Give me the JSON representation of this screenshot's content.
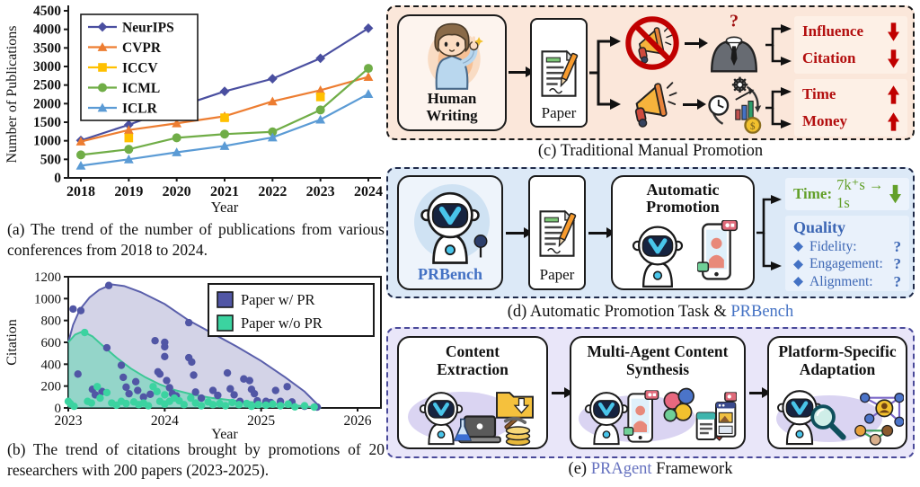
{
  "figure": {
    "panel_a": {
      "caption": "(a) The trend of the number of publications from various conferences from 2018 to 2024."
    },
    "panel_b": {
      "caption": "(b) The trend of citations brought by promotions of 20 researchers with 200 papers (2023-2025)."
    },
    "panel_c": {
      "caption": "(c) Traditional Manual Promotion",
      "human_line1": "Human",
      "human_line2": "Writing",
      "paper_label": "Paper",
      "outcomes_group1": [
        {
          "label": "Influence",
          "direction": "down"
        },
        {
          "label": "Citation",
          "direction": "down"
        }
      ],
      "outcomes_group2": [
        {
          "label": "Time",
          "direction": "up"
        },
        {
          "label": "Money",
          "direction": "up"
        }
      ]
    },
    "panel_d": {
      "caption_text": "(d) Automatic Promotion Task & ",
      "caption_link": "PRBench",
      "prbench_label": "PRBench",
      "paper_label": "Paper",
      "promo_line1": "Automatic",
      "promo_line2": "Promotion",
      "time_label": "Time:",
      "time_value": "7k⁺s → 1s",
      "quality_title": "Quality",
      "quality_items": [
        {
          "label": "Fidelity:",
          "value": "?"
        },
        {
          "label": "Engagement:",
          "value": "?"
        },
        {
          "label": "Alignment:",
          "value": "?"
        }
      ]
    },
    "panel_e": {
      "caption_prefix": "(e) ",
      "caption_link": "PRAgent",
      "caption_suffix": " Framework",
      "stages": [
        {
          "line1": "Content",
          "line2": "Extraction"
        },
        {
          "line1": "Multi-Agent Content",
          "line2": "Synthesis"
        },
        {
          "line1": "Platform-Specific",
          "line2": "Adaptation"
        }
      ]
    },
    "colors": {
      "red_text": "#b30f0f",
      "red_arrow": "#c00000",
      "green_text": "#63a02a",
      "blue_text": "#3c66b4",
      "link_blue": "#4472c4",
      "link_purple": "#6672c0",
      "panel_c_bg": "#fbe7da",
      "panel_d_bg": "#dce9f7",
      "panel_e_bg": "#e9e6f9"
    }
  },
  "chart_data": [
    {
      "type": "line",
      "title": "",
      "xlabel": "Year",
      "ylabel": "Number of Publications",
      "ylim": [
        0,
        4500
      ],
      "ytick_step": 500,
      "categories": [
        2018,
        2019,
        2020,
        2021,
        2022,
        2023,
        2024
      ],
      "legend_position": "upper-left",
      "grid": false,
      "series": [
        {
          "name": "NeurIPS",
          "color": "#4a4fa0",
          "marker": "diamond",
          "values": [
            1010,
            1430,
            1900,
            2330,
            2670,
            3220,
            4030
          ]
        },
        {
          "name": "CVPR",
          "color": "#ED7D31",
          "marker": "triangle",
          "values": [
            980,
            1290,
            1470,
            1660,
            2060,
            2360,
            2720
          ]
        },
        {
          "name": "ICCV",
          "color": "#FFC000",
          "marker": "square",
          "values": [
            null,
            1075,
            null,
            1620,
            null,
            2180,
            null
          ]
        },
        {
          "name": "ICML",
          "color": "#70AD47",
          "marker": "circle",
          "values": [
            620,
            770,
            1080,
            1180,
            1240,
            1830,
            2950
          ]
        },
        {
          "name": "ICLR",
          "color": "#5B9BD5",
          "marker": "triangle",
          "values": [
            330,
            500,
            690,
            860,
            1090,
            1570,
            2260
          ]
        }
      ]
    },
    {
      "type": "scatter_area",
      "title": "",
      "xlabel": "Year",
      "ylabel": "Citation",
      "xlim": [
        2023,
        2026.25
      ],
      "xticks": [
        2023,
        2024,
        2025,
        2026
      ],
      "ylim": [
        0,
        1200
      ],
      "ytick_step": 200,
      "legend_position": "upper-right",
      "grid": false,
      "series": [
        {
          "name": "Paper w/ PR",
          "color": "#5a5fab",
          "point_color": "#5156a5",
          "fill": "rgba(98,98,170,0.28)",
          "envelope": [
            [
              2023,
              600
            ],
            [
              2023.05,
              760
            ],
            [
              2023.12,
              900
            ],
            [
              2023.22,
              1010
            ],
            [
              2023.32,
              1080
            ],
            [
              2023.45,
              1130
            ],
            [
              2023.58,
              1115
            ],
            [
              2023.75,
              1060
            ],
            [
              2024.0,
              950
            ],
            [
              2024.25,
              800
            ],
            [
              2024.5,
              680
            ],
            [
              2024.75,
              560
            ],
            [
              2025.0,
              430
            ],
            [
              2025.25,
              280
            ],
            [
              2025.45,
              150
            ],
            [
              2025.62,
              0
            ]
          ],
          "points": [
            [
              2023.05,
              905
            ],
            [
              2023.13,
              890
            ],
            [
              2023.1,
              310
            ],
            [
              2023.25,
              170
            ],
            [
              2023.28,
              120
            ],
            [
              2023.35,
              150
            ],
            [
              2023.42,
              1120
            ],
            [
              2023.4,
              550
            ],
            [
              2023.55,
              390
            ],
            [
              2023.57,
              280
            ],
            [
              2023.6,
              190
            ],
            [
              2023.63,
              130
            ],
            [
              2023.7,
              240
            ],
            [
              2023.72,
              160
            ],
            [
              2023.78,
              100
            ],
            [
              2023.85,
              125
            ],
            [
              2023.9,
              615
            ],
            [
              2023.93,
              330
            ],
            [
              2023.95,
              310
            ],
            [
              2024.0,
              600
            ],
            [
              2024.0,
              560
            ],
            [
              2024.0,
              470
            ],
            [
              2024.02,
              250
            ],
            [
              2024.05,
              185
            ],
            [
              2024.08,
              130
            ],
            [
              2024.12,
              110
            ],
            [
              2024.25,
              780
            ],
            [
              2024.25,
              460
            ],
            [
              2024.28,
              420
            ],
            [
              2024.3,
              300
            ],
            [
              2024.32,
              145
            ],
            [
              2024.38,
              90
            ],
            [
              2024.5,
              160
            ],
            [
              2024.55,
              115
            ],
            [
              2024.65,
              320
            ],
            [
              2024.68,
              175
            ],
            [
              2024.72,
              120
            ],
            [
              2024.78,
              60
            ],
            [
              2024.82,
              265
            ],
            [
              2024.88,
              250
            ],
            [
              2024.9,
              170
            ],
            [
              2024.93,
              130
            ],
            [
              2024.96,
              65
            ],
            [
              2025.05,
              60
            ],
            [
              2025.1,
              50
            ],
            [
              2025.15,
              160
            ],
            [
              2025.2,
              60
            ],
            [
              2025.27,
              195
            ],
            [
              2025.32,
              55
            ],
            [
              2025.45,
              15
            ],
            [
              2025.58,
              8
            ]
          ]
        },
        {
          "name": "Paper w/o PR",
          "color": "#3cc896",
          "point_color": "#3bd3a0",
          "fill": "rgba(72,216,165,0.45)",
          "envelope": [
            [
              2023,
              600
            ],
            [
              2023.07,
              670
            ],
            [
              2023.15,
              700
            ],
            [
              2023.25,
              655
            ],
            [
              2023.35,
              575
            ],
            [
              2023.5,
              460
            ],
            [
              2023.65,
              360
            ],
            [
              2023.8,
              280
            ],
            [
              2023.95,
              215
            ],
            [
              2024.1,
              165
            ],
            [
              2024.3,
              120
            ],
            [
              2024.5,
              90
            ],
            [
              2024.75,
              65
            ],
            [
              2025.0,
              45
            ],
            [
              2025.25,
              30
            ],
            [
              2025.45,
              15
            ],
            [
              2025.62,
              0
            ]
          ],
          "points": [
            [
              2023.0,
              60
            ],
            [
              2023.02,
              40
            ],
            [
              2023.06,
              15
            ],
            [
              2023.17,
              690
            ],
            [
              2023.2,
              60
            ],
            [
              2023.24,
              45
            ],
            [
              2023.3,
              195
            ],
            [
              2023.33,
              90
            ],
            [
              2023.4,
              140
            ],
            [
              2023.45,
              45
            ],
            [
              2023.5,
              25
            ],
            [
              2023.55,
              60
            ],
            [
              2023.6,
              40
            ],
            [
              2023.68,
              55
            ],
            [
              2023.73,
              30
            ],
            [
              2023.78,
              45
            ],
            [
              2023.83,
              20
            ],
            [
              2023.88,
              195
            ],
            [
              2023.92,
              150
            ],
            [
              2023.95,
              60
            ],
            [
              2024.0,
              120
            ],
            [
              2024.0,
              35
            ],
            [
              2024.05,
              60
            ],
            [
              2024.1,
              90
            ],
            [
              2024.15,
              65
            ],
            [
              2024.2,
              30
            ],
            [
              2024.27,
              90
            ],
            [
              2024.32,
              45
            ],
            [
              2024.38,
              20
            ],
            [
              2024.45,
              55
            ],
            [
              2024.5,
              30
            ],
            [
              2024.57,
              40
            ],
            [
              2024.63,
              20
            ],
            [
              2024.7,
              50
            ],
            [
              2024.77,
              30
            ],
            [
              2024.85,
              40
            ],
            [
              2024.9,
              15
            ],
            [
              2024.97,
              30
            ],
            [
              2025.05,
              25
            ],
            [
              2025.12,
              35
            ],
            [
              2025.2,
              20
            ],
            [
              2025.28,
              35
            ],
            [
              2025.35,
              10
            ],
            [
              2025.45,
              20
            ],
            [
              2025.55,
              8
            ]
          ]
        }
      ]
    }
  ]
}
